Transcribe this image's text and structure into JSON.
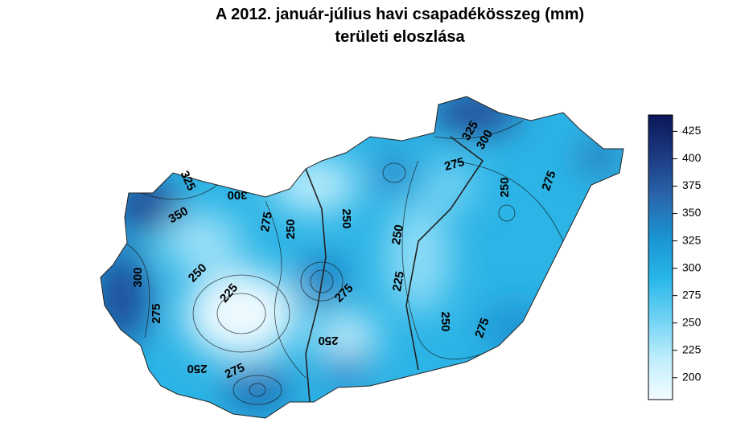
{
  "chart_data": {
    "type": "map",
    "title": [
      "A 2012. január-július havi csapadékösszeg (mm)",
      "területi eloszlása"
    ],
    "colorbar": {
      "ylim": [
        180,
        440
      ],
      "yticks": [
        200,
        225,
        250,
        275,
        300,
        325,
        350,
        375,
        400,
        425
      ],
      "colors": [
        "#f4fcff",
        "#bfeefc",
        "#6fd2f4",
        "#27b6e8",
        "#1a93d2",
        "#2a66ab",
        "#1c3a82",
        "#0b1658"
      ]
    },
    "contour_labels": [
      325,
      350,
      300,
      300,
      275,
      250,
      250,
      250,
      225,
      275,
      275,
      250,
      225,
      250,
      250,
      275,
      325,
      300,
      275,
      250,
      275,
      250,
      275
    ]
  }
}
